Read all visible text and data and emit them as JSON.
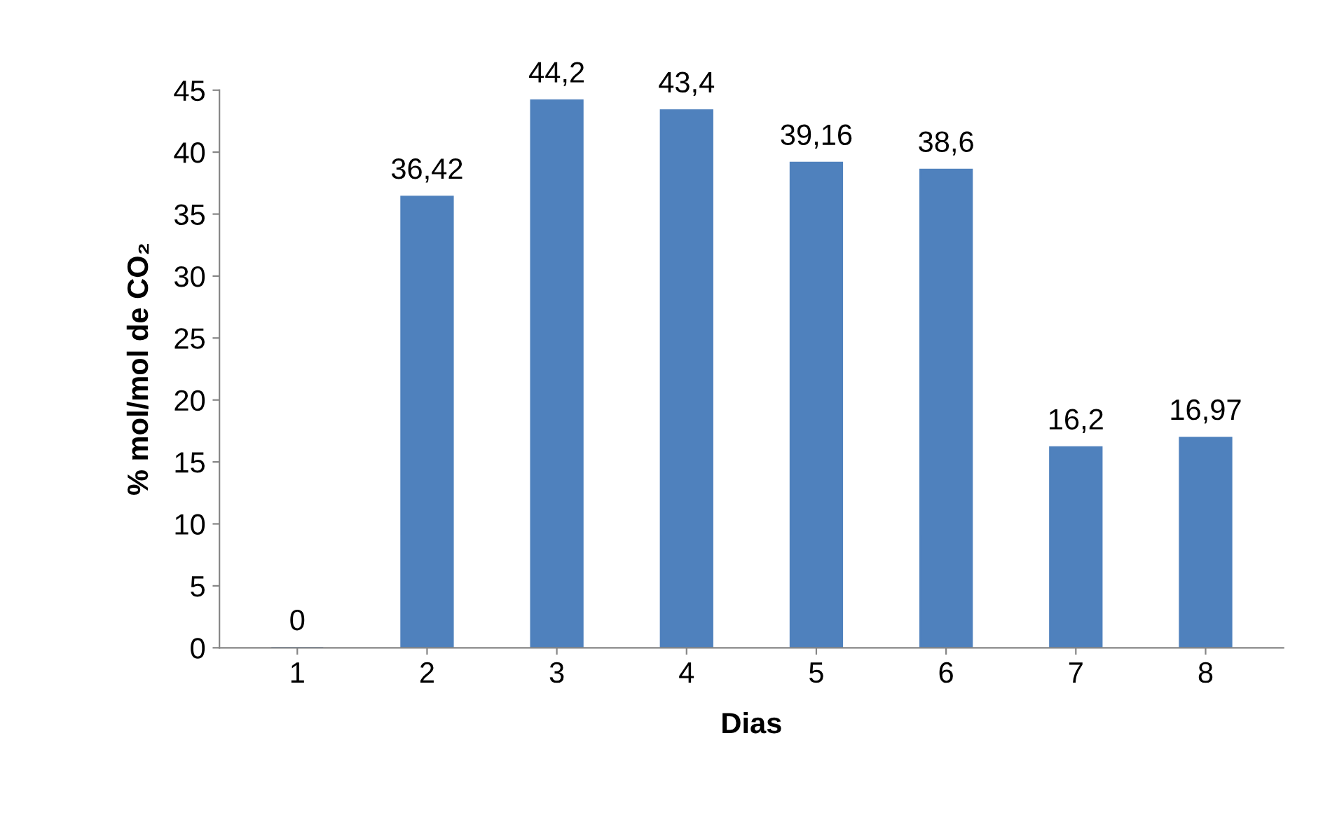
{
  "chart_data": {
    "type": "bar",
    "xlabel": "Dias",
    "ylabel": "% mol/mol de CO₂",
    "categories": [
      "1",
      "2",
      "3",
      "4",
      "5",
      "6",
      "7",
      "8"
    ],
    "values": [
      0,
      36.42,
      44.2,
      43.4,
      39.16,
      38.6,
      16.2,
      16.97
    ],
    "value_labels": [
      "0",
      "36,42",
      "44,2",
      "43,4",
      "39,16",
      "38,6",
      "16,2",
      "16,97"
    ],
    "color": "#4f81bd",
    "ylim": [
      0,
      45
    ],
    "yticks": [
      0,
      5,
      10,
      15,
      20,
      25,
      30,
      35,
      40,
      45
    ],
    "grid": false
  }
}
